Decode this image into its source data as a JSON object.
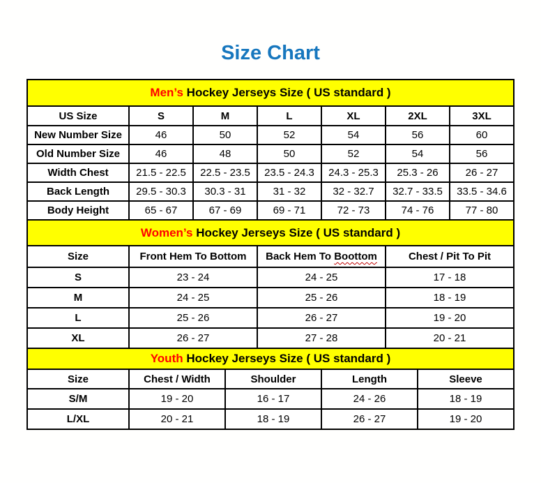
{
  "title": "Size Chart",
  "colors": {
    "title_blue": "#1777be",
    "highlight_red": "#ff0000",
    "band_yellow": "#ffff00",
    "border_black": "#000000",
    "squiggle_red": "#c00000"
  },
  "sections": [
    {
      "id": "mens",
      "highlight": "Men’s",
      "rest": " Hockey Jerseys Size ( US standard )",
      "columns": [
        "US Size",
        "S",
        "M",
        "L",
        "XL",
        "2XL",
        "3XL"
      ],
      "rows": [
        {
          "label": "New Number Size",
          "values": [
            "46",
            "50",
            "52",
            "54",
            "56",
            "60"
          ]
        },
        {
          "label": "Old Number Size",
          "values": [
            "46",
            "48",
            "50",
            "52",
            "54",
            "56"
          ]
        },
        {
          "label": "Width Chest",
          "values": [
            "21.5 - 22.5",
            "22.5 - 23.5",
            "23.5 - 24.3",
            "24.3 - 25.3",
            "25.3 - 26",
            "26 - 27"
          ]
        },
        {
          "label": "Back Length",
          "values": [
            "29.5 - 30.3",
            "30.3 - 31",
            "31 - 32",
            "32 - 32.7",
            "32.7 - 33.5",
            "33.5 - 34.6"
          ]
        },
        {
          "label": "Body Height",
          "values": [
            "65 - 67",
            "67 - 69",
            "69 - 71",
            "72 - 73",
            "74 - 76",
            "77 - 80"
          ]
        }
      ]
    },
    {
      "id": "womens",
      "highlight": "Women’s",
      "rest": " Hockey Jerseys Size ( US standard )",
      "columns": [
        "Size",
        "Front Hem To Bottom",
        "Back Hem To Boottom",
        "Chest / Pit To Pit"
      ],
      "spellcheck": {
        "column": 2,
        "word": "Boottom"
      },
      "rows": [
        {
          "label": "S",
          "values": [
            "23 - 24",
            "24 - 25",
            "17 - 18"
          ]
        },
        {
          "label": "M",
          "values": [
            "24 - 25",
            "25 - 26",
            "18 - 19"
          ]
        },
        {
          "label": "L",
          "values": [
            "25 - 26",
            "26 - 27",
            "19 - 20"
          ]
        },
        {
          "label": "XL",
          "values": [
            "26 - 27",
            "27 - 28",
            "20 - 21"
          ]
        }
      ]
    },
    {
      "id": "youth",
      "highlight": "Youth",
      "rest": " Hockey Jerseys Size ( US standard )",
      "columns": [
        "Size",
        "Chest / Width",
        "Shoulder",
        "Length",
        "Sleeve"
      ],
      "rows": [
        {
          "label": "S/M",
          "values": [
            "19 - 20",
            "16 - 17",
            "24 - 26",
            "18 - 19"
          ]
        },
        {
          "label": "L/XL",
          "values": [
            "20 - 21",
            "18 - 19",
            "26 - 27",
            "19 - 20"
          ]
        }
      ]
    }
  ]
}
